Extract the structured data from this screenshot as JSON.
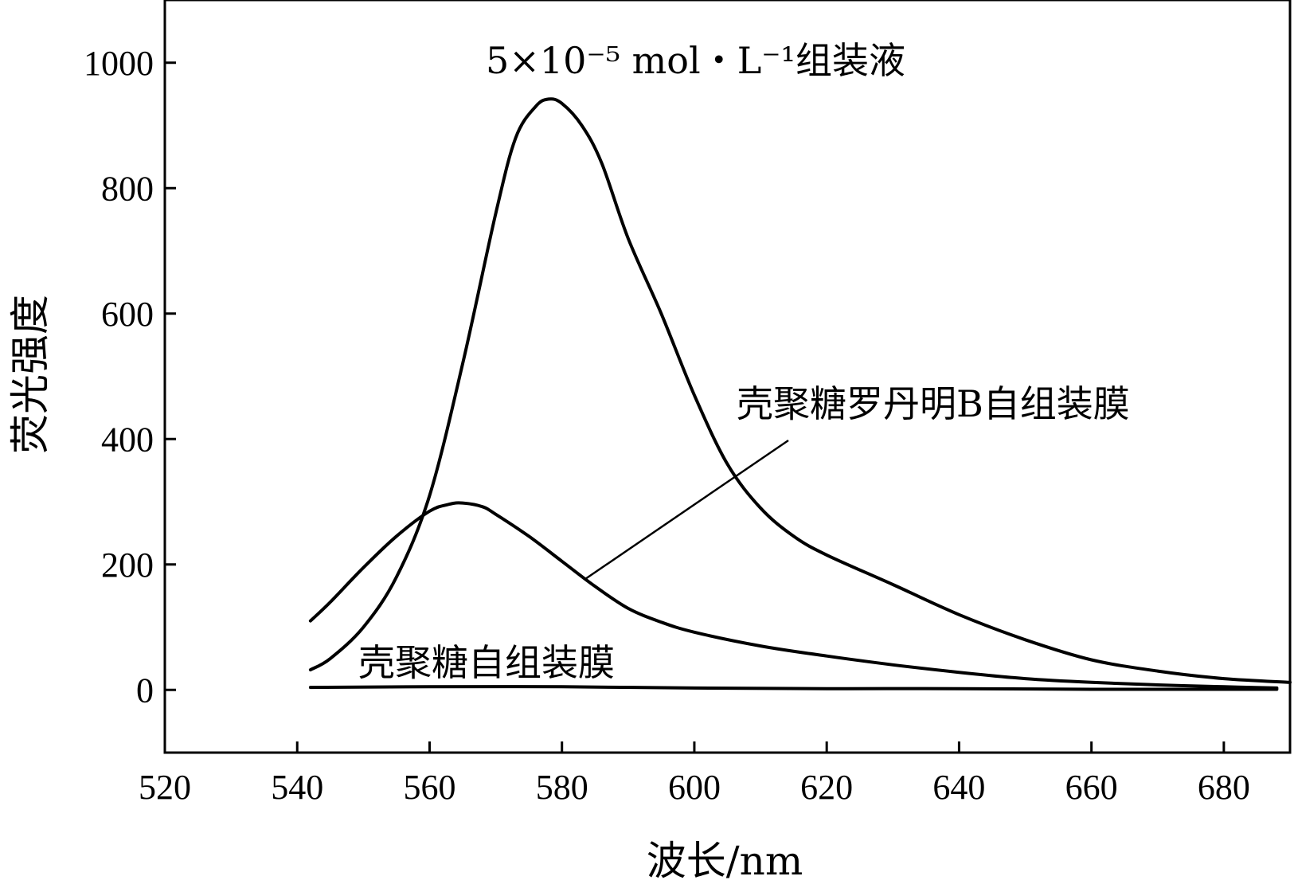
{
  "chart_data": {
    "type": "line",
    "title": "",
    "xlabel": "波长/nm",
    "ylabel": "荧光强度",
    "xlim": [
      520,
      690
    ],
    "ylim": [
      -100,
      1100
    ],
    "xticks": [
      520,
      540,
      560,
      580,
      600,
      620,
      640,
      660,
      680
    ],
    "yticks": [
      0,
      200,
      400,
      600,
      800,
      1000
    ],
    "grid": false,
    "legend": "none",
    "annotations": {
      "solution": "5×10⁻⁵ mol・L⁻¹组装液",
      "rhodamine_film": "壳聚糖罗丹明B自组装膜",
      "chitosan_film": "壳聚糖自组装膜"
    },
    "series": [
      {
        "name": "5×10⁻⁵ mol・L⁻¹组装液",
        "x": [
          542,
          545,
          550,
          555,
          560,
          565,
          570,
          573,
          576,
          578,
          580,
          583,
          586,
          590,
          595,
          600,
          605,
          610,
          615,
          620,
          630,
          640,
          650,
          660,
          670,
          680,
          690
        ],
        "y": [
          32,
          50,
          100,
          180,
          310,
          520,
          760,
          880,
          930,
          942,
          935,
          900,
          840,
          720,
          600,
          470,
          360,
          290,
          245,
          215,
          168,
          120,
          80,
          48,
          30,
          18,
          12
        ]
      },
      {
        "name": "壳聚糖罗丹明B自组装膜",
        "x": [
          542,
          545,
          550,
          555,
          560,
          563,
          565,
          568,
          570,
          575,
          580,
          585,
          590,
          595,
          600,
          610,
          620,
          630,
          640,
          650,
          660,
          670,
          680,
          688
        ],
        "y": [
          110,
          140,
          195,
          245,
          285,
          296,
          298,
          292,
          280,
          245,
          205,
          165,
          130,
          108,
          92,
          70,
          54,
          40,
          28,
          18,
          12,
          8,
          5,
          3
        ]
      },
      {
        "name": "壳聚糖自组装膜",
        "x": [
          542,
          560,
          580,
          600,
          620,
          640,
          660,
          680,
          688
        ],
        "y": [
          4,
          5,
          5,
          3,
          2,
          2,
          1,
          1,
          1
        ]
      }
    ]
  }
}
